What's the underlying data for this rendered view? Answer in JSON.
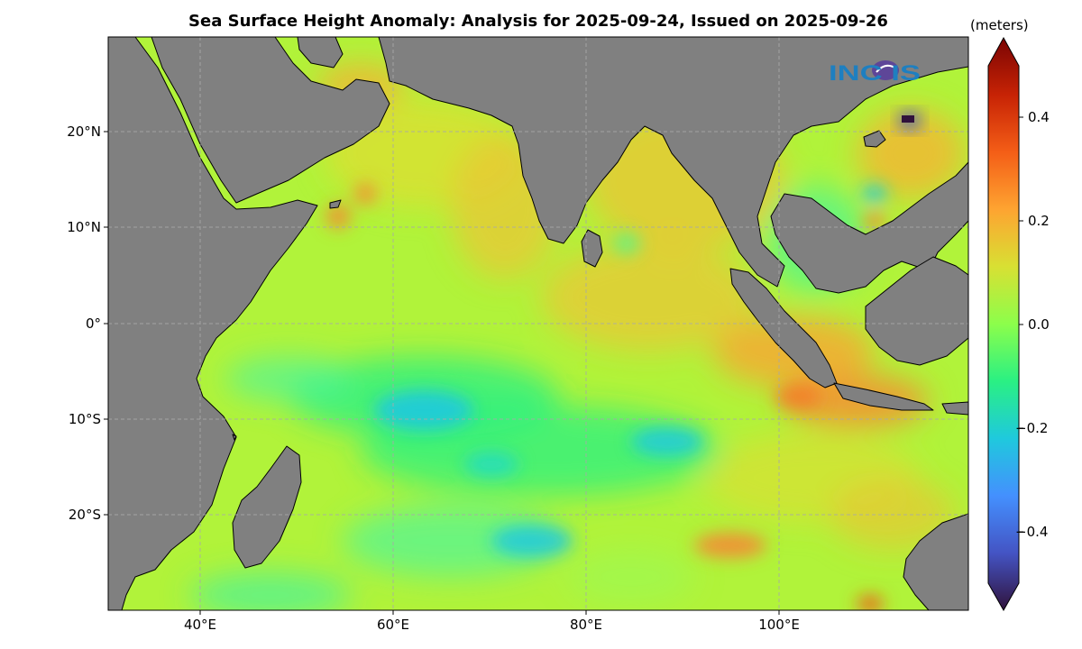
{
  "title": "Sea Surface Height Anomaly: Analysis for 2025-09-24, Issued on 2025-09-26",
  "units": "(meters)",
  "logo_text": "INC IS",
  "lon_ticks": [
    "40°E",
    "60°E",
    "80°E",
    "100°E"
  ],
  "lat_ticks": [
    "20°N",
    "10°N",
    "0°",
    "10°S",
    "20°S"
  ],
  "colorbar_ticks": [
    "0.4",
    "0.2",
    "0.0",
    "−0.2",
    "−0.4"
  ],
  "colors": {
    "land": "#808080",
    "ocean_base": "#b1f33a",
    "grid": "#b8b8b8",
    "logo": "#1e7fc0"
  },
  "colorbar": {
    "min": -0.5,
    "max": 0.5,
    "levels": 40,
    "colormap": [
      "#30123b",
      "#4454c4",
      "#4490fe",
      "#1fc9dd",
      "#2af083",
      "#8cfe4b",
      "#d8e033",
      "#fea431",
      "#f45e17",
      "#c72305",
      "#7a0403"
    ]
  },
  "map_extent": {
    "lon": [
      30,
      119
    ],
    "lat": [
      -30,
      30
    ]
  }
}
